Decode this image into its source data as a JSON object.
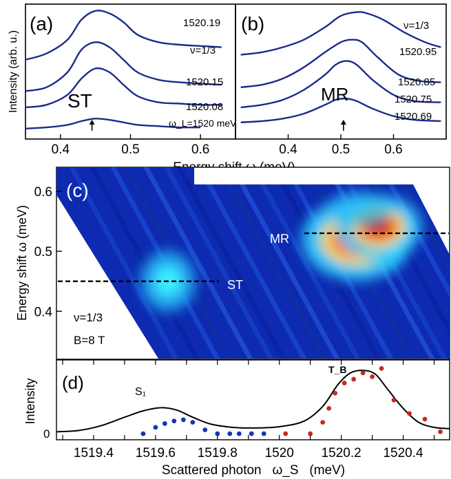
{
  "chart_data": [
    {
      "id": "a",
      "type": "line",
      "panel_label": "(a)",
      "ylabel": "Intensity (arb. u.)",
      "xlabel_shared": "Energy shift ω (meV)",
      "xlim": [
        0.35,
        0.65
      ],
      "xticks": [
        "0.4",
        "0.5",
        "0.6"
      ],
      "annotations": [
        "ST",
        "ν=1/3",
        "ω_L=1520 meV"
      ],
      "series": [
        {
          "name": "1520.19",
          "x": [
            0.35,
            0.38,
            0.41,
            0.43,
            0.45,
            0.47,
            0.49,
            0.51,
            0.54,
            0.57,
            0.6,
            0.63
          ],
          "y": [
            0.6,
            0.65,
            0.76,
            0.92,
            0.99,
            0.97,
            0.9,
            0.8,
            0.74,
            0.72,
            0.71,
            0.7
          ]
        },
        {
          "name": "1520.15",
          "x": [
            0.35,
            0.38,
            0.41,
            0.43,
            0.45,
            0.47,
            0.49,
            0.51,
            0.54,
            0.57,
            0.6,
            0.63
          ],
          "y": [
            0.35,
            0.38,
            0.5,
            0.68,
            0.74,
            0.7,
            0.6,
            0.5,
            0.44,
            0.42,
            0.41,
            0.4
          ]
        },
        {
          "name": "1520.08",
          "x": [
            0.35,
            0.38,
            0.41,
            0.43,
            0.45,
            0.47,
            0.49,
            0.51,
            0.54,
            0.57,
            0.6,
            0.63
          ],
          "y": [
            0.22,
            0.24,
            0.32,
            0.45,
            0.53,
            0.5,
            0.4,
            0.31,
            0.26,
            0.25,
            0.24,
            0.24
          ]
        },
        {
          "name": "1520",
          "x": [
            0.35,
            0.38,
            0.41,
            0.43,
            0.45,
            0.47,
            0.49,
            0.51,
            0.54,
            0.57,
            0.6
          ],
          "y": [
            0.05,
            0.06,
            0.08,
            0.11,
            0.13,
            0.12,
            0.1,
            0.08,
            0.07,
            0.06,
            0.06
          ]
        }
      ],
      "marker_x": 0.445
    },
    {
      "id": "b",
      "type": "line",
      "panel_label": "(b)",
      "xlim": [
        0.3,
        0.7
      ],
      "xticks": [
        "0.4",
        "0.5",
        "0.6"
      ],
      "annotations": [
        "MR",
        "ν=1/3"
      ],
      "series": [
        {
          "name": "1520.95",
          "x": [
            0.31,
            0.35,
            0.39,
            0.43,
            0.47,
            0.5,
            0.53,
            0.55,
            0.58,
            0.62,
            0.66,
            0.69
          ],
          "y": [
            0.64,
            0.66,
            0.7,
            0.76,
            0.86,
            0.95,
            0.98,
            0.97,
            0.92,
            0.82,
            0.74,
            0.7
          ]
        },
        {
          "name": "1520.85",
          "x": [
            0.31,
            0.35,
            0.39,
            0.43,
            0.47,
            0.5,
            0.52,
            0.54,
            0.57,
            0.61,
            0.65,
            0.69
          ],
          "y": [
            0.38,
            0.4,
            0.45,
            0.54,
            0.66,
            0.74,
            0.76,
            0.74,
            0.62,
            0.48,
            0.43,
            0.42
          ]
        },
        {
          "name": "1520.75",
          "x": [
            0.31,
            0.35,
            0.39,
            0.43,
            0.47,
            0.49,
            0.51,
            0.53,
            0.56,
            0.6,
            0.64,
            0.69
          ],
          "y": [
            0.22,
            0.24,
            0.28,
            0.36,
            0.48,
            0.56,
            0.59,
            0.56,
            0.44,
            0.32,
            0.27,
            0.26
          ]
        },
        {
          "name": "1520.69",
          "x": [
            0.31,
            0.35,
            0.39,
            0.43,
            0.47,
            0.49,
            0.51,
            0.53,
            0.56,
            0.6,
            0.64,
            0.69
          ],
          "y": [
            0.1,
            0.11,
            0.13,
            0.17,
            0.24,
            0.28,
            0.29,
            0.27,
            0.21,
            0.15,
            0.12,
            0.11
          ]
        }
      ],
      "marker_x": 0.505
    },
    {
      "id": "c",
      "type": "heatmap",
      "panel_label": "(c)",
      "ylabel": "Energy shift ω (meV)",
      "ylim": [
        0.32,
        0.64
      ],
      "yticks": [
        "0.4",
        "0.5",
        "0.6"
      ],
      "xlim": [
        1519.28,
        1520.55
      ],
      "annotations": [
        "MR",
        "ST",
        "ν=1/3",
        "B=8 T"
      ],
      "mr_level": 0.53,
      "st_level": 0.45,
      "hotspots": [
        {
          "x": 1520.25,
          "y": 0.52,
          "amp": 1.0
        },
        {
          "x": 1520.32,
          "y": 0.54,
          "amp": 0.75
        },
        {
          "x": 1519.64,
          "y": 0.45,
          "amp": 0.42
        }
      ]
    },
    {
      "id": "d",
      "type": "line",
      "panel_label": "(d)",
      "ylabel": "Intensity",
      "xlabel": "Scattered photon   ω_S   (meV)",
      "xlim": [
        1519.28,
        1520.55
      ],
      "xticks": [
        "1519.4",
        "1519.6",
        "1519.8",
        "1520",
        "1520.2",
        "1520.4"
      ],
      "ytick": "0",
      "annotations": [
        "S₁",
        "T_B"
      ],
      "series": [
        {
          "name": "",
          "x": [
            1519.28,
            1519.35,
            1519.42,
            1519.5,
            1519.56,
            1519.62,
            1519.67,
            1519.72,
            1519.78,
            1519.85,
            1519.92,
            1520.0,
            1520.08,
            1520.14,
            1520.19,
            1520.23,
            1520.27,
            1520.31,
            1520.35,
            1520.4,
            1520.45,
            1520.5,
            1520.55
          ],
          "y": [
            0.05,
            0.07,
            0.14,
            0.28,
            0.38,
            0.43,
            0.39,
            0.28,
            0.17,
            0.12,
            0.11,
            0.13,
            0.22,
            0.45,
            0.8,
            0.98,
            1.02,
            0.96,
            0.72,
            0.42,
            0.2,
            0.12,
            0.1
          ]
        }
      ],
      "points_blue": [
        [
          1519.56,
          0.02
        ],
        [
          1519.6,
          0.12
        ],
        [
          1519.63,
          0.18
        ],
        [
          1519.66,
          0.22
        ],
        [
          1519.69,
          0.24
        ],
        [
          1519.72,
          0.2
        ],
        [
          1519.76,
          0.08
        ],
        [
          1519.8,
          0.02
        ],
        [
          1519.84,
          0.02
        ],
        [
          1519.87,
          0.02
        ],
        [
          1519.91,
          0.02
        ],
        [
          1519.95,
          0.02
        ]
      ],
      "points_red": [
        [
          1520.02,
          0.02
        ],
        [
          1520.1,
          0.02
        ],
        [
          1520.14,
          0.2
        ],
        [
          1520.16,
          0.42
        ],
        [
          1520.18,
          0.66
        ],
        [
          1520.21,
          0.82
        ],
        [
          1520.24,
          0.88
        ],
        [
          1520.27,
          0.98
        ],
        [
          1520.3,
          0.92
        ],
        [
          1520.33,
          1.05
        ],
        [
          1520.37,
          0.55
        ],
        [
          1520.42,
          0.34
        ],
        [
          1520.47,
          0.25
        ],
        [
          1520.52,
          0.05
        ]
      ]
    }
  ]
}
